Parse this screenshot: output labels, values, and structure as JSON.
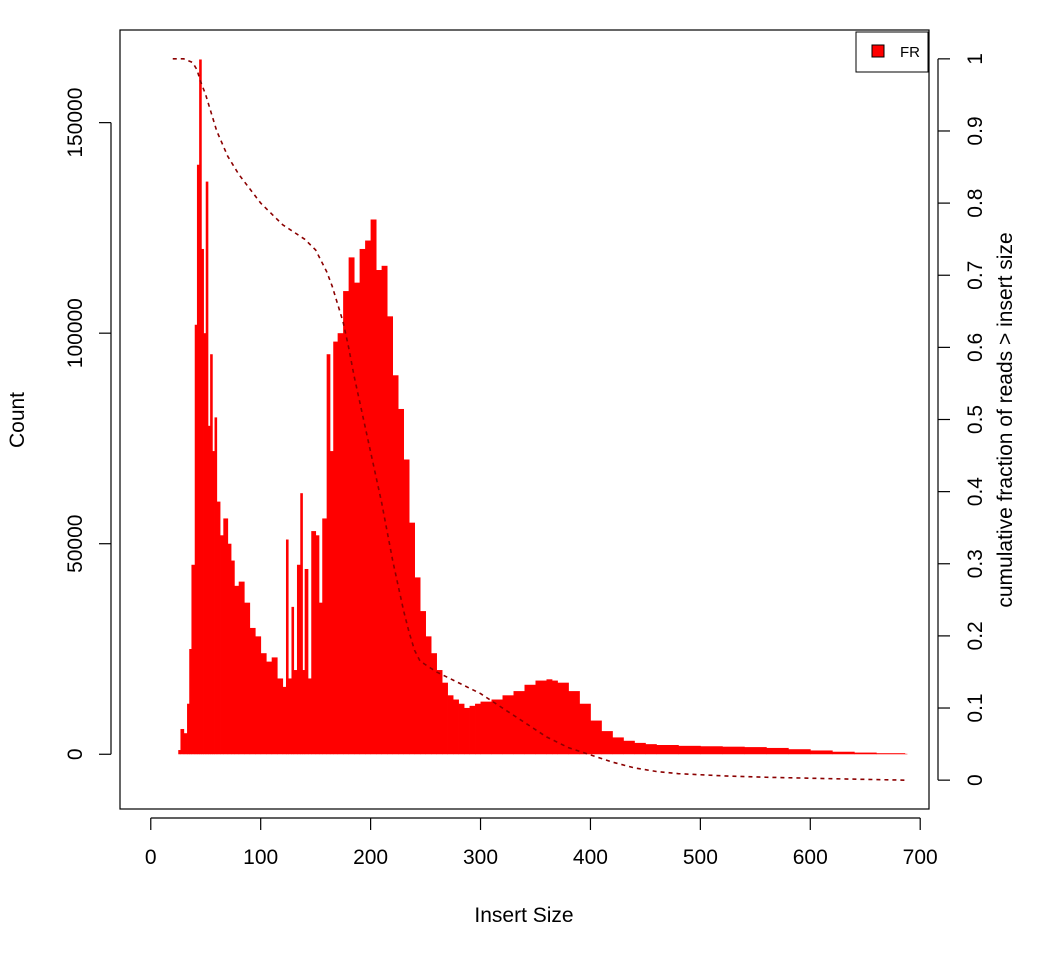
{
  "chart_data": {
    "type": "bar",
    "xlabel": "Insert Size",
    "ylabel": "Count",
    "y2label": "cumulative fraction of reads > insert size",
    "xlim": [
      -28,
      708
    ],
    "ylim": [
      -13000,
      172000
    ],
    "y2lim": [
      -0.04,
      1.04
    ],
    "x_ticks": [
      0,
      100,
      200,
      300,
      400,
      500,
      600,
      700
    ],
    "y_ticks": [
      0,
      50000,
      100000,
      150000
    ],
    "y2_ticks": [
      0,
      0.1,
      0.2,
      0.3,
      0.4,
      0.5,
      0.6,
      0.7,
      0.8,
      0.9,
      1
    ],
    "bar_color": "#ff0000",
    "cumulative_color": "#8b0000",
    "legend": {
      "position": "top-right",
      "label": "FR",
      "color": "#ff0000"
    },
    "series": [
      {
        "name": "FR",
        "x": [
          20,
          25,
          27,
          30,
          33,
          35,
          37,
          40,
          42,
          44,
          46,
          48,
          50,
          52,
          54,
          56,
          58,
          60,
          63,
          66,
          70,
          73,
          76,
          80,
          85,
          90,
          95,
          100,
          105,
          110,
          115,
          120,
          123,
          125,
          128,
          130,
          133,
          136,
          138,
          140,
          143,
          146,
          150,
          153,
          156,
          160,
          163,
          166,
          170,
          175,
          180,
          185,
          190,
          195,
          200,
          205,
          210,
          215,
          220,
          225,
          230,
          235,
          240,
          245,
          250,
          255,
          260,
          265,
          270,
          275,
          280,
          285,
          290,
          295,
          300,
          310,
          320,
          330,
          340,
          350,
          360,
          365,
          370,
          380,
          390,
          400,
          410,
          420,
          430,
          440,
          450,
          460,
          480,
          500,
          520,
          540,
          560,
          580,
          600,
          620,
          640,
          660,
          686
        ],
        "values": [
          0,
          1000,
          6000,
          5000,
          12000,
          25000,
          45000,
          102000,
          140000,
          165000,
          120000,
          100000,
          136000,
          78000,
          95000,
          72000,
          80000,
          60000,
          52000,
          56000,
          50000,
          46000,
          40000,
          41000,
          36000,
          30000,
          28000,
          24000,
          22000,
          23000,
          18000,
          16000,
          51000,
          18000,
          35000,
          20000,
          45000,
          62000,
          20000,
          44000,
          18000,
          53000,
          52000,
          36000,
          56000,
          95000,
          72000,
          98000,
          100000,
          110000,
          118000,
          112000,
          120000,
          122000,
          127000,
          115000,
          116000,
          104000,
          90000,
          82000,
          70000,
          55000,
          42000,
          34000,
          28000,
          24000,
          20000,
          17000,
          14000,
          13000,
          12000,
          11000,
          11500,
          12000,
          12500,
          13000,
          14000,
          15000,
          16500,
          17500,
          17800,
          17500,
          17000,
          15000,
          12000,
          8000,
          5500,
          4000,
          3200,
          2700,
          2400,
          2200,
          2000,
          1900,
          1800,
          1700,
          1500,
          1200,
          900,
          600,
          400,
          250,
          100
        ]
      }
    ],
    "cumulative": {
      "x": [
        20,
        30,
        38,
        42,
        45,
        50,
        55,
        60,
        70,
        80,
        90,
        100,
        110,
        120,
        130,
        140,
        150,
        155,
        160,
        165,
        170,
        175,
        180,
        185,
        190,
        195,
        200,
        205,
        210,
        215,
        220,
        225,
        230,
        235,
        240,
        245,
        250,
        260,
        280,
        300,
        320,
        340,
        360,
        380,
        400,
        420,
        440,
        460,
        480,
        520,
        560,
        620,
        686
      ],
      "y": [
        1.0,
        1.0,
        0.995,
        0.985,
        0.97,
        0.95,
        0.925,
        0.9,
        0.865,
        0.84,
        0.82,
        0.8,
        0.785,
        0.77,
        0.76,
        0.75,
        0.735,
        0.72,
        0.705,
        0.685,
        0.66,
        0.635,
        0.6,
        0.56,
        0.525,
        0.49,
        0.455,
        0.42,
        0.385,
        0.345,
        0.305,
        0.27,
        0.235,
        0.205,
        0.18,
        0.165,
        0.16,
        0.15,
        0.135,
        0.12,
        0.1,
        0.08,
        0.06,
        0.045,
        0.035,
        0.025,
        0.017,
        0.012,
        0.009,
        0.006,
        0.004,
        0.002,
        0
      ]
    }
  }
}
